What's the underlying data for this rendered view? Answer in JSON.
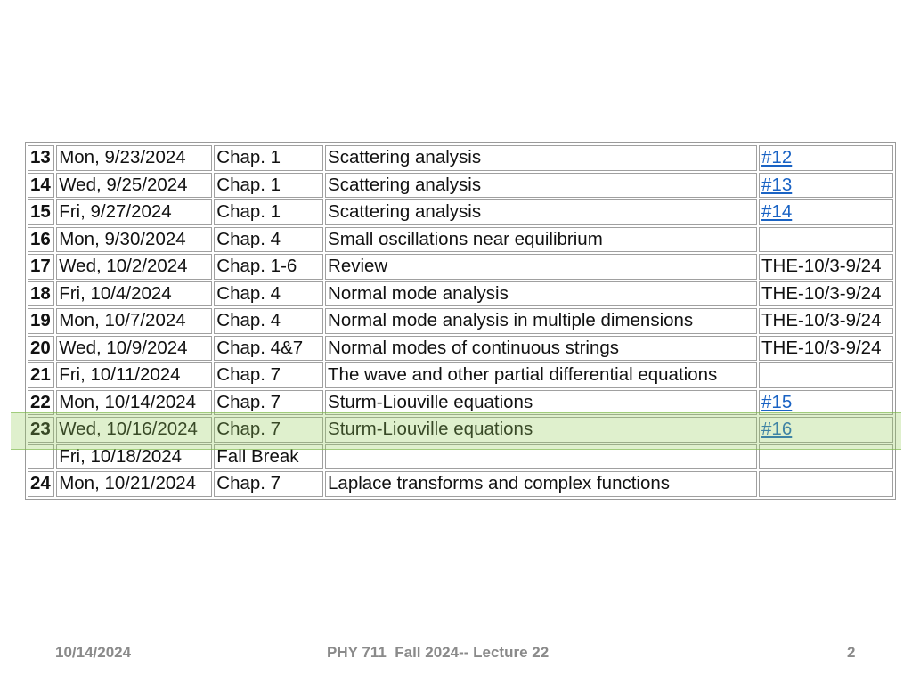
{
  "schedule": {
    "rows": [
      {
        "num": "13",
        "date": "Mon, 9/23/2024",
        "chapter": "Chap. 1",
        "topic": "Scattering analysis",
        "hw": "#12",
        "hw_link": true
      },
      {
        "num": "14",
        "date": "Wed, 9/25/2024",
        "chapter": "Chap. 1",
        "topic": "Scattering analysis",
        "hw": "#13",
        "hw_link": true
      },
      {
        "num": "15",
        "date": "Fri, 9/27/2024",
        "chapter": "Chap. 1",
        "topic": "Scattering analysis",
        "hw": "#14",
        "hw_link": true
      },
      {
        "num": "16",
        "date": "Mon, 9/30/2024",
        "chapter": "Chap. 4",
        "topic": "Small oscillations near equilibrium",
        "hw": "",
        "hw_link": false
      },
      {
        "num": "17",
        "date": "Wed, 10/2/2024",
        "chapter": "Chap. 1-6",
        "topic": "Review",
        "hw": "THE-10/3-9/24",
        "hw_link": false
      },
      {
        "num": "18",
        "date": "Fri, 10/4/2024",
        "chapter": "Chap. 4",
        "topic": "Normal mode analysis",
        "hw": "THE-10/3-9/24",
        "hw_link": false
      },
      {
        "num": "19",
        "date": "Mon, 10/7/2024",
        "chapter": "Chap. 4",
        "topic": "Normal mode analysis in multiple dimensions",
        "hw": "THE-10/3-9/24",
        "hw_link": false
      },
      {
        "num": "20",
        "date": "Wed, 10/9/2024",
        "chapter": "Chap. 4&7",
        "topic": "Normal modes of continuous strings",
        "hw": "THE-10/3-9/24",
        "hw_link": false
      },
      {
        "num": "21",
        "date": "Fri, 10/11/2024",
        "chapter": "Chap. 7",
        "topic": "The wave and other partial differential equations",
        "hw": "",
        "hw_link": false
      },
      {
        "num": "22",
        "date": "Mon, 10/14/2024",
        "chapter": "Chap. 7",
        "topic": "Sturm-Liouville equations",
        "hw": "#15",
        "hw_link": true
      },
      {
        "num": "23",
        "date": "Wed, 10/16/2024",
        "chapter": "Chap. 7",
        "topic": "Sturm-Liouville equations",
        "hw": "#16",
        "hw_link": true
      },
      {
        "num": "",
        "date": "Fri, 10/18/2024",
        "chapter": "Fall Break",
        "topic": "",
        "hw": "",
        "hw_link": false
      },
      {
        "num": "24",
        "date": "Mon, 10/21/2024",
        "chapter": "Chap. 7",
        "topic": "Laplace transforms and complex functions",
        "hw": "",
        "hw_link": false
      }
    ],
    "highlighted_row": "22"
  },
  "footer": {
    "date": "10/14/2024",
    "title": "PHY 711  Fall 2024-- Lecture 22",
    "page": "2"
  },
  "colors": {
    "link": "#1a63c4",
    "highlight": "#96cd5a",
    "footer_text": "#8a8a8a"
  }
}
